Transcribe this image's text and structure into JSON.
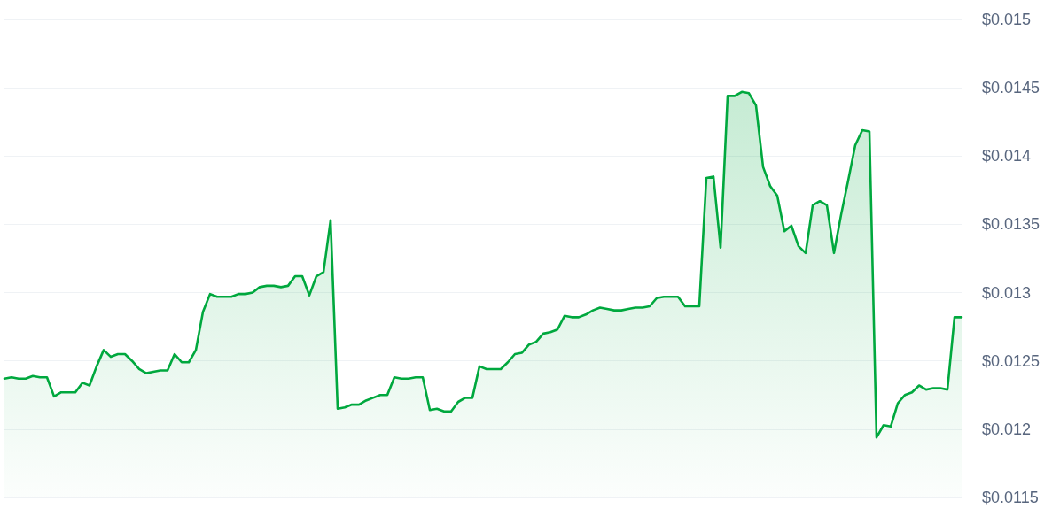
{
  "chart_data": {
    "type": "area",
    "color": "#00a83e",
    "marker": "none",
    "grid": "y",
    "tick_labels": "y",
    "ylim": [
      0.0115,
      0.015
    ],
    "yticks": [
      {
        "value": 0.0115,
        "label": "$0.0115"
      },
      {
        "value": 0.012,
        "label": "$0.012"
      },
      {
        "value": 0.0125,
        "label": "$0.0125"
      },
      {
        "value": 0.013,
        "label": "$0.013"
      },
      {
        "value": 0.0135,
        "label": "$0.0135"
      },
      {
        "value": 0.014,
        "label": "$0.014"
      },
      {
        "value": 0.0145,
        "label": "$0.0145"
      },
      {
        "value": 0.015,
        "label": "$0.015"
      }
    ],
    "categories": [
      null,
      null,
      null,
      null,
      null,
      null,
      null,
      null,
      null,
      null,
      null,
      null,
      null,
      null,
      null,
      null,
      null,
      null,
      null,
      null,
      null,
      null,
      null,
      null,
      null,
      null,
      null,
      null,
      null,
      null,
      null,
      null,
      null,
      null,
      null,
      null,
      null,
      null,
      null,
      null,
      null,
      null,
      null,
      null,
      null,
      null,
      null,
      null,
      null,
      null,
      null,
      null,
      null,
      null,
      null,
      null,
      null,
      null,
      null,
      null,
      null,
      null,
      null,
      null,
      null,
      null,
      null,
      null,
      null,
      null,
      null,
      null,
      null,
      null,
      null,
      null,
      null,
      null,
      null,
      null,
      null,
      null,
      null,
      null,
      null,
      null,
      null,
      null,
      null,
      null,
      null,
      null,
      null,
      null,
      null,
      null,
      null,
      null,
      null,
      null,
      null,
      null,
      null,
      null,
      null,
      null,
      null,
      null,
      null,
      null,
      null,
      null,
      null,
      null,
      null,
      null,
      null,
      null,
      null,
      null,
      null,
      null,
      null,
      null,
      null,
      null,
      null,
      null,
      null,
      null,
      null,
      null,
      null,
      null,
      null,
      null
    ],
    "values": [
      0.01237,
      0.01238,
      0.01237,
      0.01237,
      0.01239,
      0.01238,
      0.01238,
      0.01224,
      0.01227,
      0.01227,
      0.01227,
      0.01234,
      0.01232,
      0.01246,
      0.01258,
      0.01253,
      0.01255,
      0.01255,
      0.0125,
      0.01244,
      0.01241,
      0.01242,
      0.01243,
      0.01243,
      0.01255,
      0.01249,
      0.01249,
      0.01258,
      0.01286,
      0.01299,
      0.01297,
      0.01297,
      0.01297,
      0.01299,
      0.01299,
      0.013,
      0.01304,
      0.01305,
      0.01305,
      0.01304,
      0.01305,
      0.01312,
      0.01312,
      0.01298,
      0.01312,
      0.01315,
      0.01353,
      0.01215,
      0.01216,
      0.01218,
      0.01218,
      0.01221,
      0.01223,
      0.01225,
      0.01225,
      0.01238,
      0.01237,
      0.01237,
      0.01238,
      0.01238,
      0.01214,
      0.01215,
      0.01213,
      0.01213,
      0.0122,
      0.01223,
      0.01223,
      0.01246,
      0.01244,
      0.01244,
      0.01244,
      0.01249,
      0.01255,
      0.01256,
      0.01262,
      0.01264,
      0.0127,
      0.01271,
      0.01273,
      0.01283,
      0.01282,
      0.01282,
      0.01284,
      0.01287,
      0.01289,
      0.01288,
      0.01287,
      0.01287,
      0.01288,
      0.01289,
      0.01289,
      0.0129,
      0.01296,
      0.01297,
      0.01297,
      0.01297,
      0.0129,
      0.0129,
      0.0129,
      0.01384,
      0.01385,
      0.01333,
      0.01444,
      0.01444,
      0.01447,
      0.01446,
      0.01437,
      0.01392,
      0.01378,
      0.01371,
      0.01345,
      0.01349,
      0.01334,
      0.01329,
      0.01364,
      0.01367,
      0.01364,
      0.01329,
      0.01357,
      0.01382,
      0.01408,
      0.01419,
      0.01418,
      0.01194,
      0.01203,
      0.01202,
      0.01219,
      0.01225,
      0.01227,
      0.01232,
      0.01229,
      0.0123,
      0.0123,
      0.01229,
      0.01282,
      0.01282
    ]
  }
}
